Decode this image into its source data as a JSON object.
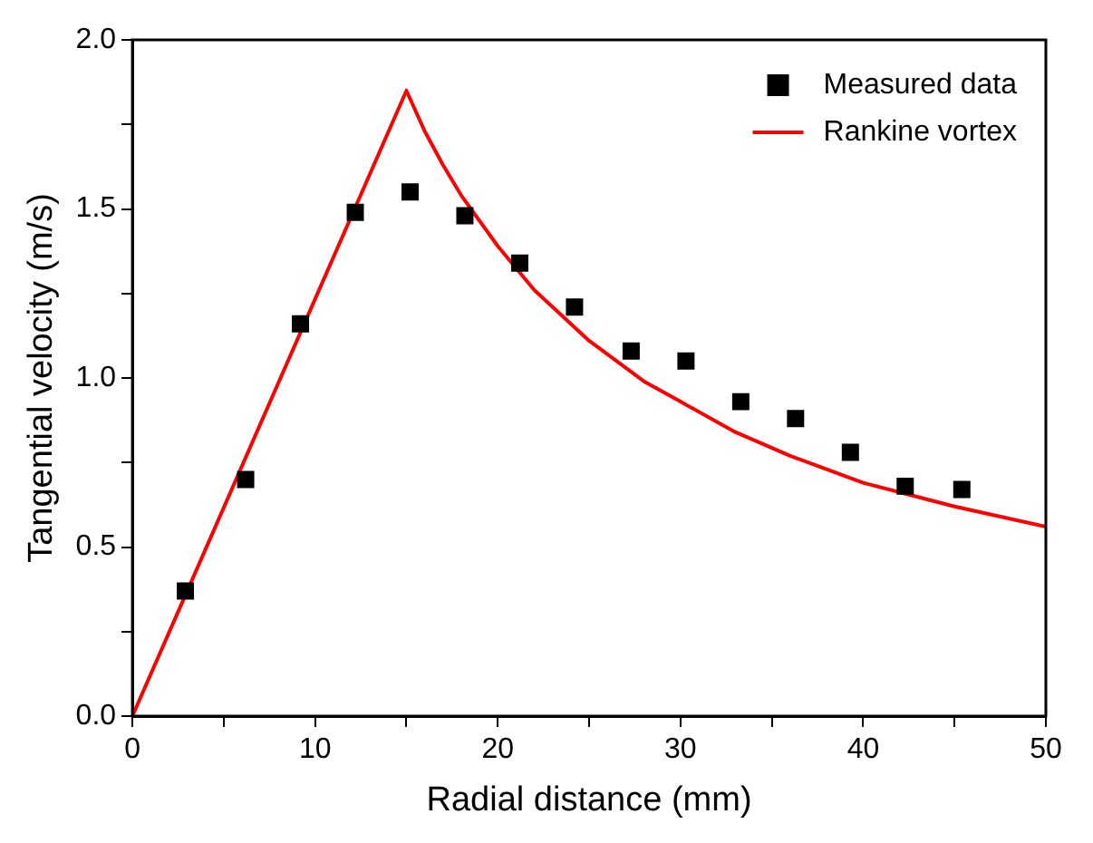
{
  "chart_data": {
    "type": "scatter",
    "xlabel": "Radial distance (mm)",
    "ylabel": "Tangential velocity (m/s)",
    "xlim": [
      0,
      50
    ],
    "ylim": [
      0,
      2.0
    ],
    "xticks": [
      0,
      {
        "value": 5,
        "label": null
      },
      10,
      {
        "value": 15,
        "label": null
      },
      20,
      {
        "value": 25,
        "label": null
      },
      30,
      {
        "value": 35,
        "label": null
      },
      40,
      {
        "value": 45,
        "label": null
      },
      50
    ],
    "yticks": [
      {
        "value": 0,
        "label": "0.0"
      },
      {
        "value": 0.25,
        "label": null
      },
      {
        "value": 0.5,
        "label": "0.5"
      },
      {
        "value": 0.75,
        "label": null
      },
      {
        "value": 1.0,
        "label": "1.0"
      },
      {
        "value": 1.25,
        "label": null
      },
      {
        "value": 1.5,
        "label": "1.5"
      },
      {
        "value": 1.75,
        "label": null
      },
      {
        "value": 2.0,
        "label": "2.0"
      }
    ],
    "grid": false,
    "legend": "top right",
    "series": [
      {
        "name": "Measured data",
        "type": "scatter",
        "marker": "square",
        "color": "#000000",
        "x": [
          2.9,
          6.2,
          9.2,
          12.2,
          15.2,
          18.2,
          21.2,
          24.2,
          27.3,
          30.3,
          33.3,
          36.3,
          39.3,
          42.3,
          45.4
        ],
        "values": [
          0.37,
          0.7,
          1.16,
          1.49,
          1.55,
          1.48,
          1.34,
          1.21,
          1.08,
          1.05,
          0.93,
          0.88,
          0.78,
          0.68,
          0.67
        ]
      },
      {
        "name": "Rankine vortex",
        "type": "line",
        "marker": "none",
        "line_style": "solid",
        "color": "#ff0000",
        "x": [
          0,
          15,
          16,
          17,
          18,
          20,
          22,
          25,
          28,
          30,
          33,
          36,
          40,
          45,
          50
        ],
        "values": [
          0,
          1.85,
          1.73,
          1.63,
          1.54,
          1.39,
          1.26,
          1.11,
          0.99,
          0.93,
          0.84,
          0.77,
          0.69,
          0.62,
          0.56
        ]
      }
    ]
  }
}
